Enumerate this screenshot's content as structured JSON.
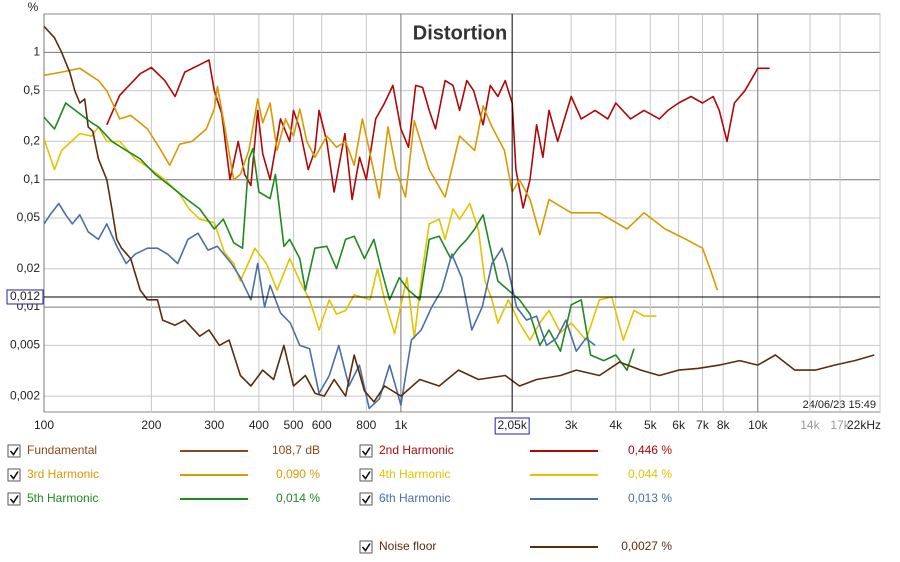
{
  "chart_data": {
    "type": "line",
    "title": "Distortion",
    "unit": "%",
    "timestamp": "24/06/23 15:49",
    "log_x": true,
    "log_y": true,
    "grid": true,
    "xlim": [
      100,
      22000
    ],
    "ylim": [
      0.0015,
      2
    ],
    "xticks": [
      100,
      200,
      300,
      400,
      500,
      600,
      800,
      {
        "value": 1000,
        "label": "1k"
      },
      {
        "value": 3000,
        "label": "3k"
      },
      {
        "value": 4000,
        "label": "4k"
      },
      {
        "value": 5000,
        "label": "5k"
      },
      {
        "value": 6000,
        "label": "6k"
      },
      {
        "value": 7000,
        "label": "7k"
      },
      {
        "value": 8000,
        "label": "8k"
      },
      {
        "value": 10000,
        "label": "10k"
      },
      {
        "value": 14000,
        "label": "14k",
        "color": "#999999"
      },
      {
        "value": 17000,
        "label": "17k",
        "color": "#999999"
      },
      {
        "value": 22000,
        "label": "22kHz"
      }
    ],
    "yticks": [
      1,
      {
        "value": 0.5,
        "label": "0,5"
      },
      {
        "value": 0.2,
        "label": "0,2"
      },
      {
        "value": 0.1,
        "label": "0,1"
      },
      {
        "value": 0.05,
        "label": "0,05"
      },
      {
        "value": 0.02,
        "label": "0,02"
      },
      {
        "value": 0.01,
        "label": "0,01"
      },
      {
        "value": 0.005,
        "label": "0,005"
      },
      {
        "value": 0.002,
        "label": "0,002"
      }
    ],
    "cursor": {
      "x": 2050,
      "x_label": "2,05k",
      "y": 0.012,
      "y_label": "0,012"
    },
    "fundamental": {
      "name": "Fundamental",
      "color": "#8b4a1a",
      "readout": "108,7 dB"
    },
    "series": [
      {
        "name": "2nd Harmonic",
        "color": "#b00808",
        "readout": "0,446 %",
        "x": [
          150,
          163,
          186,
          200,
          218,
          233,
          248,
          273,
          290,
          300,
          315,
          332,
          350,
          365,
          380,
          397,
          410,
          430,
          460,
          488,
          500,
          521,
          550,
          574,
          590,
          620,
          650,
          697,
          730,
          766,
          800,
          850,
          900,
          950,
          1000,
          1050,
          1100,
          1150,
          1200,
          1250,
          1330,
          1400,
          1460,
          1530,
          1600,
          1700,
          1780,
          1870,
          1960,
          2050,
          2100,
          2200,
          2300,
          2400,
          2500,
          2600,
          2750,
          3000,
          3200,
          3500,
          3800,
          4000,
          4400,
          4800,
          5300,
          5600,
          6000,
          6500,
          7000,
          7500,
          7800,
          8200,
          8600,
          9200,
          10000,
          10800
        ],
        "values": [
          0.27,
          0.46,
          0.68,
          0.76,
          0.6,
          0.45,
          0.7,
          0.8,
          0.87,
          0.5,
          0.33,
          0.1,
          0.2,
          0.11,
          0.09,
          0.35,
          0.16,
          0.1,
          0.3,
          0.2,
          0.35,
          0.25,
          0.12,
          0.17,
          0.35,
          0.2,
          0.08,
          0.23,
          0.07,
          0.15,
          0.1,
          0.3,
          0.4,
          0.55,
          0.25,
          0.18,
          0.55,
          0.53,
          0.35,
          0.25,
          0.6,
          0.55,
          0.35,
          0.6,
          0.5,
          0.27,
          0.55,
          0.45,
          0.6,
          0.4,
          0.12,
          0.06,
          0.1,
          0.27,
          0.15,
          0.35,
          0.2,
          0.45,
          0.3,
          0.35,
          0.3,
          0.4,
          0.3,
          0.35,
          0.3,
          0.35,
          0.4,
          0.45,
          0.4,
          0.45,
          0.35,
          0.2,
          0.4,
          0.5,
          0.75,
          0.75
        ]
      },
      {
        "name": "3rd Harmonic",
        "color": "#d89a00",
        "readout": "0,090 %",
        "x": [
          100,
          112,
          126,
          142,
          150,
          163,
          175,
          195,
          210,
          225,
          240,
          260,
          285,
          300,
          306,
          318,
          340,
          355,
          375,
          397,
          410,
          430,
          450,
          475,
          500,
          521,
          545,
          574,
          620,
          660,
          700,
          740,
          780,
          820,
          870,
          920,
          970,
          1030,
          1090,
          1200,
          1330,
          1460,
          1610,
          1700,
          1800,
          1950,
          2050,
          2150,
          2300,
          2450,
          2600,
          3000,
          3600,
          4300,
          4800,
          5500,
          6300,
          7000,
          7400,
          7700
        ],
        "values": [
          0.66,
          0.7,
          0.75,
          0.6,
          0.5,
          0.3,
          0.32,
          0.25,
          0.18,
          0.13,
          0.19,
          0.2,
          0.25,
          0.36,
          0.54,
          0.3,
          0.1,
          0.11,
          0.17,
          0.43,
          0.28,
          0.4,
          0.17,
          0.3,
          0.22,
          0.36,
          0.2,
          0.15,
          0.22,
          0.18,
          0.2,
          0.13,
          0.3,
          0.16,
          0.072,
          0.26,
          0.12,
          0.073,
          0.29,
          0.12,
          0.073,
          0.22,
          0.17,
          0.38,
          0.26,
          0.17,
          0.08,
          0.1,
          0.07,
          0.037,
          0.07,
          0.055,
          0.055,
          0.041,
          0.055,
          0.041,
          0.034,
          0.029,
          0.019,
          0.0136
        ]
      },
      {
        "name": "4th Harmonic",
        "color": "#e3c400",
        "readout": "0,044 %",
        "x": [
          100,
          107,
          112,
          126,
          136,
          142,
          150,
          163,
          180,
          200,
          218,
          240,
          255,
          273,
          300,
          320,
          340,
          355,
          390,
          420,
          450,
          488,
          521,
          555,
          590,
          630,
          660,
          700,
          740,
          820,
          860,
          900,
          960,
          1040,
          1090,
          1150,
          1200,
          1280,
          1330,
          1400,
          1460,
          1560,
          1650,
          1720,
          1800,
          1870,
          2000,
          2150,
          2300,
          2450,
          2600,
          2800,
          3000,
          3300,
          3600,
          3900,
          4200,
          4500,
          4800,
          5200
        ],
        "values": [
          0.21,
          0.12,
          0.17,
          0.23,
          0.22,
          0.26,
          0.2,
          0.2,
          0.146,
          0.12,
          0.1,
          0.077,
          0.059,
          0.049,
          0.046,
          0.027,
          0.022,
          0.016,
          0.029,
          0.022,
          0.0136,
          0.024,
          0.016,
          0.0114,
          0.0066,
          0.0114,
          0.0088,
          0.0094,
          0.0125,
          0.0114,
          0.02,
          0.0114,
          0.0062,
          0.017,
          0.0057,
          0.02,
          0.045,
          0.049,
          0.034,
          0.059,
          0.049,
          0.065,
          0.04,
          0.016,
          0.0114,
          0.0075,
          0.0114,
          0.0075,
          0.0055,
          0.0075,
          0.0094,
          0.0063,
          0.0075,
          0.0055,
          0.0114,
          0.012,
          0.0055,
          0.0094,
          0.0085,
          0.0085
        ]
      },
      {
        "name": "5th Harmonic",
        "color": "#1f8a1f",
        "readout": "0,014 %",
        "x": [
          100,
          107,
          115,
          126,
          136,
          142,
          155,
          170,
          186,
          205,
          225,
          250,
          273,
          300,
          318,
          340,
          360,
          375,
          385,
          400,
          430,
          445,
          470,
          488,
          521,
          540,
          574,
          620,
          660,
          700,
          740,
          790,
          840,
          880,
          930,
          990,
          1050,
          1130,
          1200,
          1280,
          1380,
          1450,
          1530,
          1610,
          1700,
          1780,
          1870,
          2000,
          2150,
          2300,
          2450,
          2600,
          2800,
          3000,
          3200,
          3400,
          3700,
          4000,
          4300,
          4500
        ],
        "values": [
          0.31,
          0.25,
          0.4,
          0.33,
          0.28,
          0.26,
          0.2,
          0.17,
          0.146,
          0.11,
          0.09,
          0.071,
          0.059,
          0.041,
          0.049,
          0.032,
          0.029,
          0.146,
          0.175,
          0.08,
          0.071,
          0.11,
          0.03,
          0.034,
          0.024,
          0.0136,
          0.029,
          0.03,
          0.02,
          0.034,
          0.036,
          0.024,
          0.034,
          0.02,
          0.0114,
          0.017,
          0.0136,
          0.0114,
          0.034,
          0.036,
          0.024,
          0.029,
          0.034,
          0.041,
          0.053,
          0.029,
          0.016,
          0.0136,
          0.0114,
          0.0088,
          0.005,
          0.0066,
          0.0045,
          0.0104,
          0.0114,
          0.0042,
          0.0038,
          0.0042,
          0.0032,
          0.0047
        ]
      },
      {
        "name": "6th Harmonic",
        "color": "#4a6fa8",
        "readout": "0,013 %",
        "x": [
          100,
          104,
          110,
          115,
          120,
          126,
          133,
          142,
          150,
          160,
          170,
          180,
          195,
          208,
          222,
          237,
          253,
          270,
          288,
          306,
          335,
          355,
          380,
          397,
          415,
          430,
          460,
          490,
          521,
          555,
          590,
          630,
          670,
          715,
          765,
          815,
          870,
          930,
          1000,
          1070,
          1140,
          1220,
          1300,
          1390,
          1480,
          1580,
          1690,
          1800,
          1920,
          1980,
          2110,
          2250,
          2400,
          2560,
          2730,
          2900,
          3100,
          3300,
          3500
        ],
        "values": [
          0.045,
          0.053,
          0.065,
          0.053,
          0.045,
          0.053,
          0.039,
          0.034,
          0.045,
          0.03,
          0.022,
          0.026,
          0.029,
          0.029,
          0.026,
          0.022,
          0.034,
          0.038,
          0.028,
          0.03,
          0.022,
          0.017,
          0.0114,
          0.022,
          0.01,
          0.0148,
          0.009,
          0.0075,
          0.005,
          0.0047,
          0.0021,
          0.0029,
          0.005,
          0.0024,
          0.0035,
          0.0016,
          0.0019,
          0.0035,
          0.0017,
          0.0055,
          0.0066,
          0.01,
          0.0136,
          0.026,
          0.017,
          0.0066,
          0.01,
          0.022,
          0.029,
          0.022,
          0.01,
          0.0079,
          0.0085,
          0.005,
          0.0057,
          0.0079,
          0.0045,
          0.0057,
          0.005
        ]
      },
      {
        "name": "Noise floor",
        "color": "#5a2d0c",
        "readout": "0,0027 %",
        "x": [
          100,
          107,
          112,
          118,
          122,
          126,
          130,
          133,
          137,
          142,
          150,
          155,
          160,
          165,
          175,
          186,
          195,
          208,
          215,
          233,
          248,
          273,
          290,
          310,
          330,
          355,
          380,
          410,
          440,
          470,
          500,
          540,
          575,
          610,
          650,
          700,
          740,
          790,
          840,
          900,
          1000,
          1130,
          1280,
          1450,
          1650,
          1960,
          2150,
          2400,
          2800,
          3100,
          3600,
          4100,
          4700,
          5300,
          6000,
          6800,
          7800,
          8900,
          10000,
          11200,
          12700,
          14500,
          16400,
          18700,
          21200
        ],
        "values": [
          1.6,
          1.3,
          1.0,
          0.7,
          0.5,
          0.4,
          0.43,
          0.26,
          0.24,
          0.146,
          0.1,
          0.059,
          0.034,
          0.029,
          0.024,
          0.0136,
          0.0114,
          0.0114,
          0.0079,
          0.0072,
          0.0079,
          0.0059,
          0.0066,
          0.005,
          0.0055,
          0.0029,
          0.0024,
          0.0032,
          0.0027,
          0.005,
          0.0024,
          0.0029,
          0.0021,
          0.002,
          0.0027,
          0.002,
          0.0042,
          0.0022,
          0.0018,
          0.0024,
          0.002,
          0.0027,
          0.0024,
          0.0032,
          0.0027,
          0.0029,
          0.0024,
          0.0027,
          0.0029,
          0.0032,
          0.0029,
          0.0037,
          0.0032,
          0.0029,
          0.0032,
          0.0033,
          0.0035,
          0.0038,
          0.0035,
          0.0042,
          0.0032,
          0.0032,
          0.0035,
          0.0038,
          0.0042
        ]
      }
    ]
  }
}
